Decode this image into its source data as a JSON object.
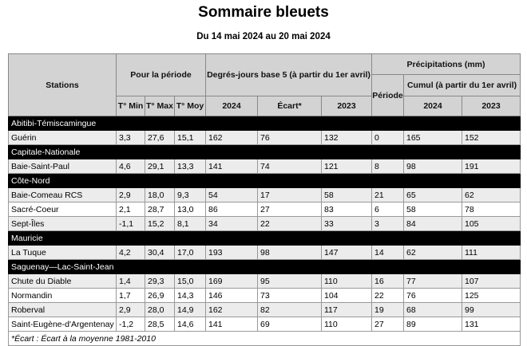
{
  "title": "Sommaire bleuets",
  "subtitle": "Du 14 mai 2024 au 20 mai 2024",
  "headers": {
    "stations": "Stations",
    "periode_group": "Pour la période",
    "degres": "Degrés-jours base 5 (à partir du 1er avril)",
    "precip": "Précipitations (mm)",
    "periode": "Période",
    "cumul": "Cumul (à partir du 1er avril)",
    "tmin": "T° Min",
    "tmax": "T° Max",
    "tmoy": "T° Moy",
    "dj2024": "2024",
    "ecart": "Écart*",
    "dj2023": "2023",
    "c2024": "2024",
    "c2023": "2023"
  },
  "regions": [
    {
      "name": "Abitibi-Témiscamingue",
      "rows": [
        [
          "Guérin",
          "3,3",
          "27,6",
          "15,1",
          "162",
          "76",
          "132",
          "0",
          "165",
          "152"
        ]
      ]
    },
    {
      "name": "Capitale-Nationale",
      "rows": [
        [
          "Baie-Saint-Paul",
          "4,6",
          "29,1",
          "13,3",
          "141",
          "74",
          "121",
          "8",
          "98",
          "191"
        ]
      ]
    },
    {
      "name": "Côte-Nord",
      "rows": [
        [
          "Baie-Comeau RCS",
          "2,9",
          "18,0",
          "9,3",
          "54",
          "17",
          "58",
          "21",
          "65",
          "62"
        ],
        [
          "Sacré-Coeur",
          "2,1",
          "28,7",
          "13,0",
          "86",
          "27",
          "83",
          "6",
          "58",
          "78"
        ],
        [
          "Sept-Îles",
          "-1,1",
          "15,2",
          "8,1",
          "34",
          "22",
          "33",
          "3",
          "84",
          "105"
        ]
      ]
    },
    {
      "name": "Mauricie",
      "rows": [
        [
          "La Tuque",
          "4,2",
          "30,4",
          "17,0",
          "193",
          "98",
          "147",
          "14",
          "62",
          "111"
        ]
      ]
    },
    {
      "name": "Saguenay—Lac-Saint-Jean",
      "rows": [
        [
          "Chute du Diable",
          "1,4",
          "29,3",
          "15,0",
          "169",
          "95",
          "110",
          "16",
          "77",
          "107"
        ],
        [
          "Normandin",
          "1,7",
          "26,9",
          "14,3",
          "146",
          "73",
          "104",
          "22",
          "76",
          "125"
        ],
        [
          "Roberval",
          "2,9",
          "28,0",
          "14,9",
          "162",
          "82",
          "117",
          "19",
          "68",
          "99"
        ],
        [
          "Saint-Eugène-d'Argentenay",
          "-1,2",
          "28,5",
          "14,6",
          "141",
          "69",
          "110",
          "27",
          "89",
          "131"
        ]
      ]
    }
  ],
  "footnote": "*Écart : Écart à la moyenne 1981-2010"
}
